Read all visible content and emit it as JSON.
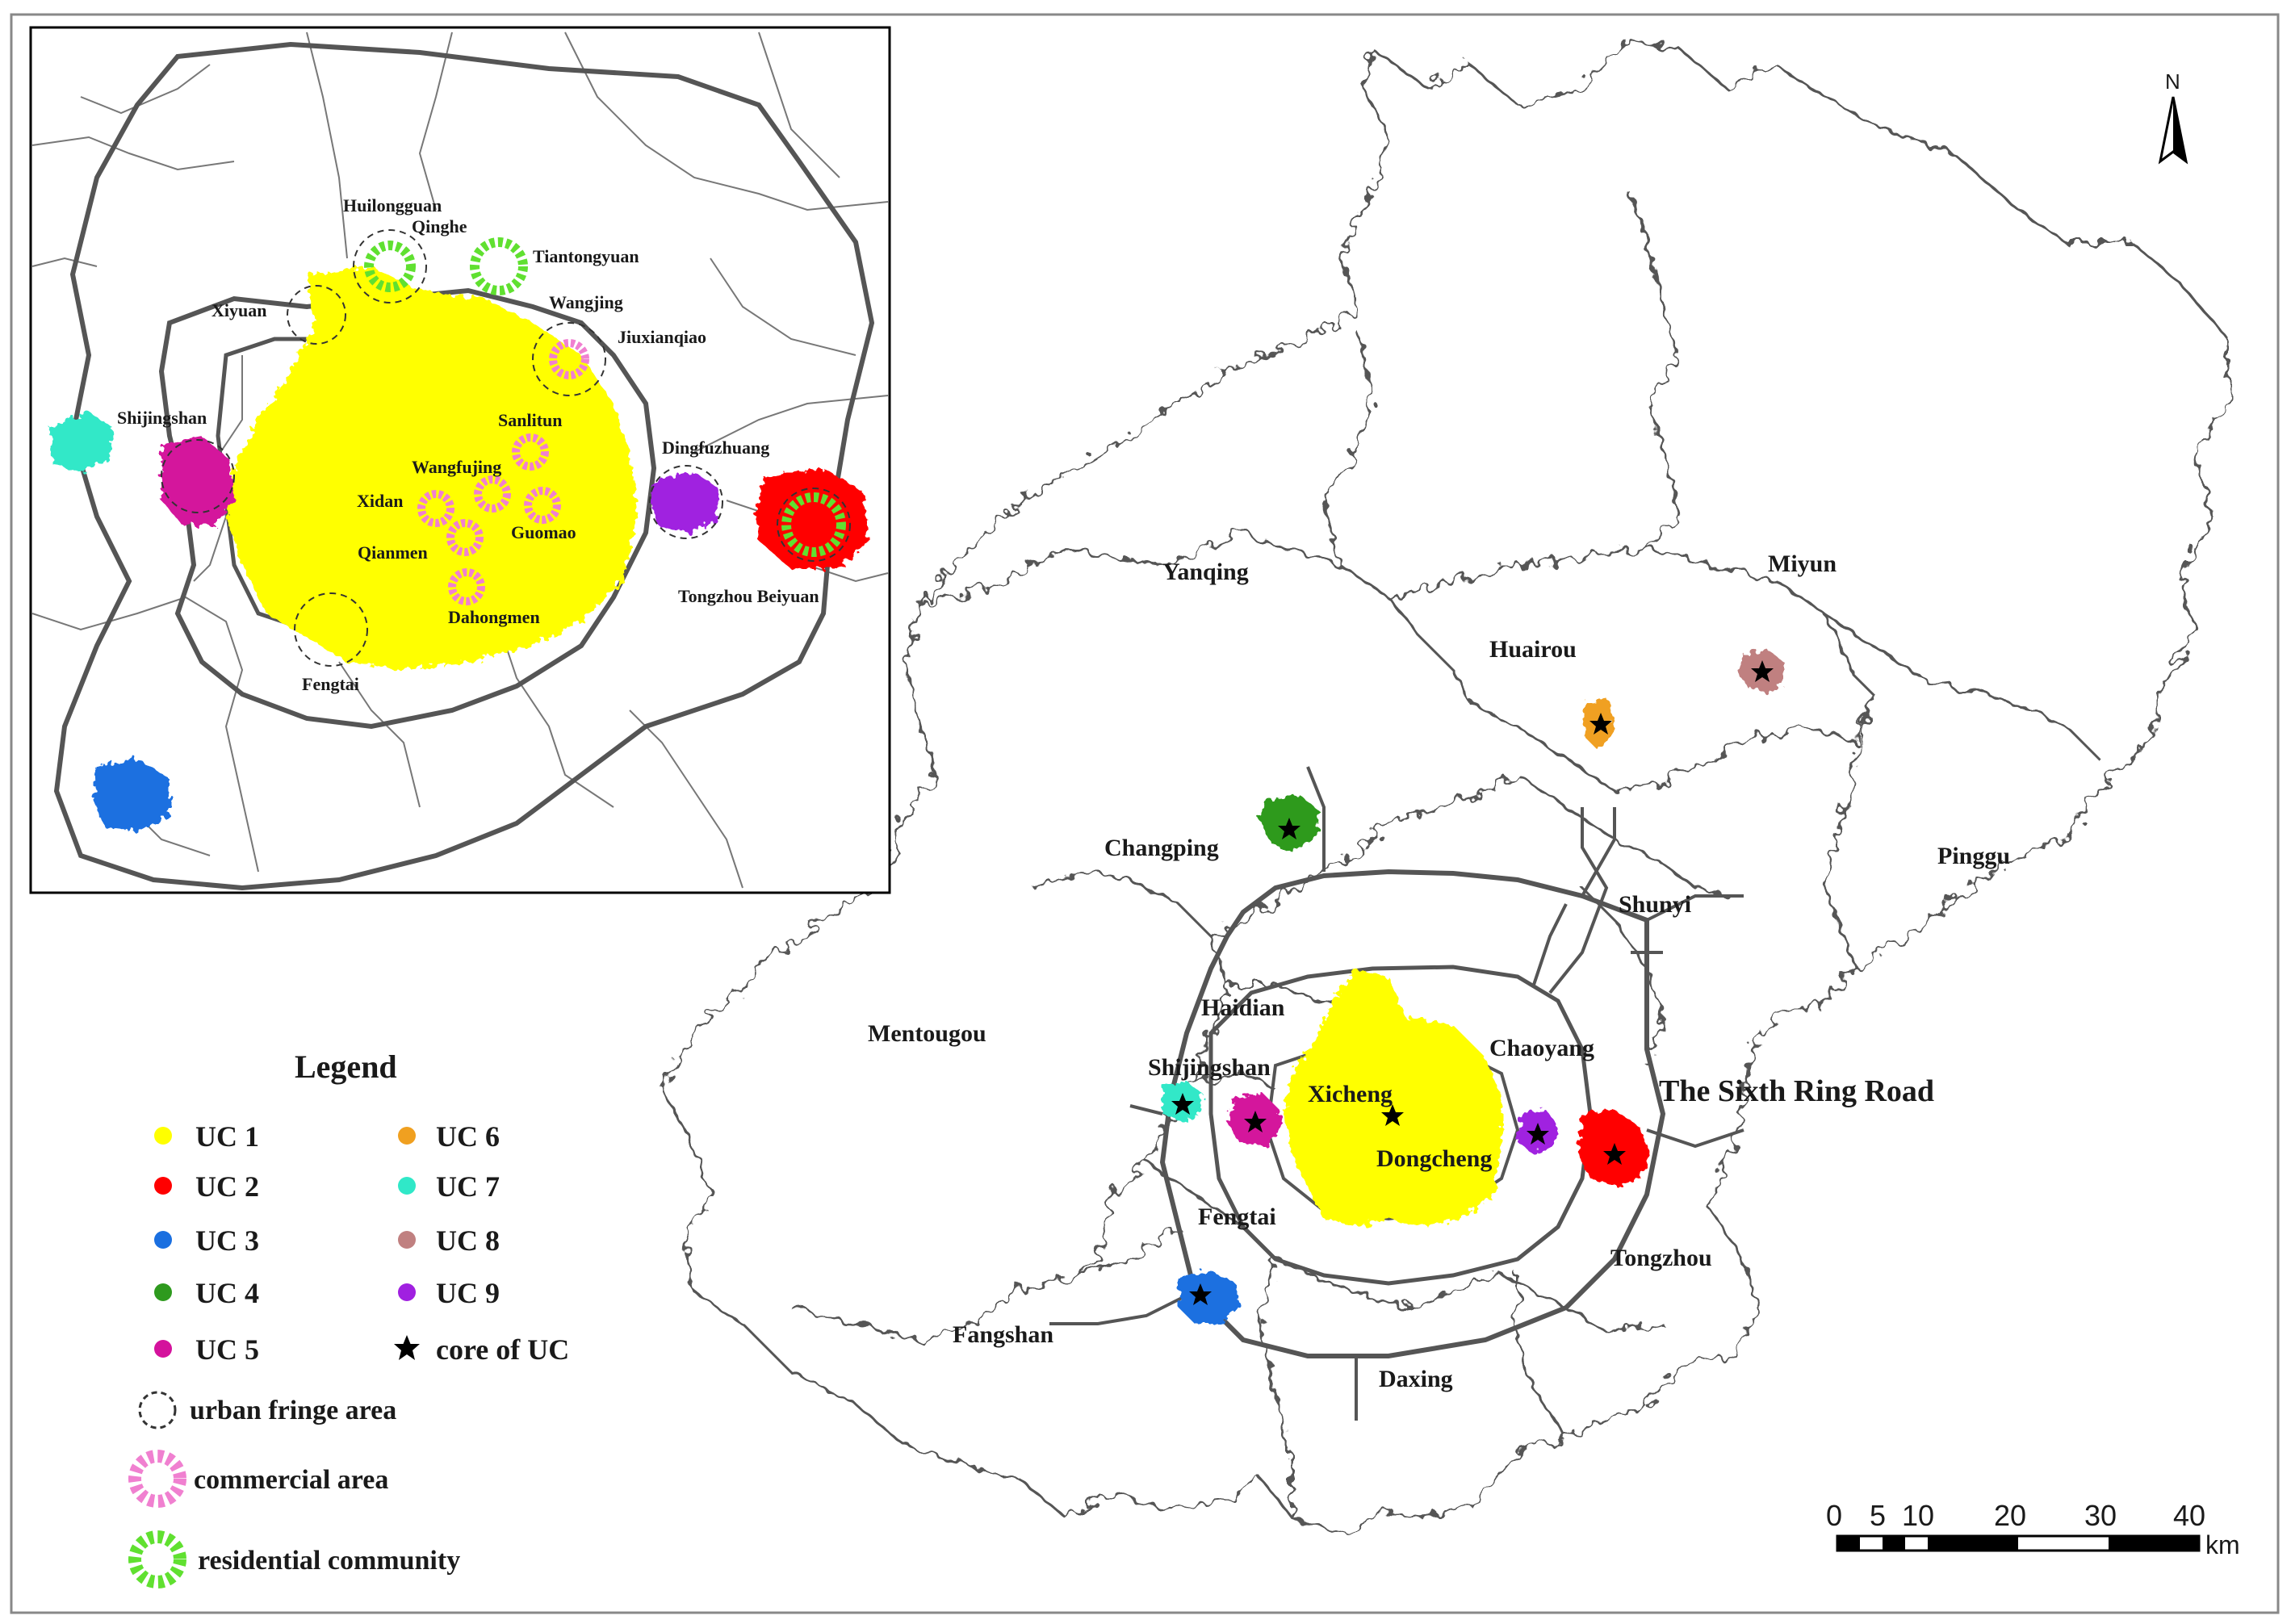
{
  "main_districts": [
    {
      "id": "yanqing",
      "label": "Yanqing"
    },
    {
      "id": "huairou",
      "label": "Huairou"
    },
    {
      "id": "miyun",
      "label": "Miyun"
    },
    {
      "id": "pinggu",
      "label": "Pinggu"
    },
    {
      "id": "changping",
      "label": "Changping"
    },
    {
      "id": "shunyi",
      "label": "Shunyi"
    },
    {
      "id": "mentougou",
      "label": "Mentougou"
    },
    {
      "id": "haidian",
      "label": "Haidian"
    },
    {
      "id": "shijingshan",
      "label": "Shijingshan"
    },
    {
      "id": "chaoyang",
      "label": "Chaoyang"
    },
    {
      "id": "xicheng",
      "label": "Xicheng"
    },
    {
      "id": "dongcheng",
      "label": "Dongcheng"
    },
    {
      "id": "fengtai",
      "label": "Fengtai"
    },
    {
      "id": "tongzhou",
      "label": "Tongzhou"
    },
    {
      "id": "fangshan",
      "label": "Fangshan"
    },
    {
      "id": "daxing",
      "label": "Daxing"
    }
  ],
  "ring_road_label": "The Sixth Ring Road",
  "inset_labels": [
    {
      "id": "huilongguan",
      "label": "Huilongguan"
    },
    {
      "id": "qinghe",
      "label": "Qinghe"
    },
    {
      "id": "tiantongyuan",
      "label": "Tiantongyuan"
    },
    {
      "id": "xiyuan",
      "label": "Xiyuan"
    },
    {
      "id": "wangjing",
      "label": "Wangjing"
    },
    {
      "id": "jiuxianqiao",
      "label": "Jiuxianqiao"
    },
    {
      "id": "shijingshan",
      "label": "Shijingshan"
    },
    {
      "id": "sanlitun",
      "label": "Sanlitun"
    },
    {
      "id": "dingfuzhuang",
      "label": "Dingfuzhuang"
    },
    {
      "id": "wangfujing",
      "label": "Wangfujing"
    },
    {
      "id": "xidan",
      "label": "Xidan"
    },
    {
      "id": "guomao",
      "label": "Guomao"
    },
    {
      "id": "qianmen",
      "label": "Qianmen"
    },
    {
      "id": "tongzhou-beiyuan",
      "label": "Tongzhou Beiyuan"
    },
    {
      "id": "dahongmen",
      "label": "Dahongmen"
    },
    {
      "id": "fengtai",
      "label": "Fengtai"
    }
  ],
  "north_arrow": {
    "label": "N"
  },
  "scale_bar": {
    "ticks": [
      "0",
      "5",
      "10",
      "20",
      "30",
      "40"
    ],
    "unit": "km"
  },
  "legend": {
    "title": "Legend",
    "items": [
      {
        "id": "uc1",
        "label": "UC 1",
        "color": "#ffff00",
        "symbol": "dot"
      },
      {
        "id": "uc2",
        "label": "UC 2",
        "color": "#ff0000",
        "symbol": "dot"
      },
      {
        "id": "uc3",
        "label": "UC 3",
        "color": "#1a6fe0",
        "symbol": "dot"
      },
      {
        "id": "uc4",
        "label": "UC 4",
        "color": "#2e9a1e",
        "symbol": "dot"
      },
      {
        "id": "uc5",
        "label": "UC 5",
        "color": "#d4129c",
        "symbol": "dot"
      },
      {
        "id": "uc6",
        "label": "UC 6",
        "color": "#f0a020",
        "symbol": "dot"
      },
      {
        "id": "uc7",
        "label": "UC 7",
        "color": "#30e8c8",
        "symbol": "dot"
      },
      {
        "id": "uc8",
        "label": "UC 8",
        "color": "#c08080",
        "symbol": "dot"
      },
      {
        "id": "uc9",
        "label": "UC 9",
        "color": "#a020e0",
        "symbol": "dot"
      },
      {
        "id": "core",
        "label": "core of UC",
        "color": "#000000",
        "symbol": "star"
      }
    ],
    "extra": [
      {
        "id": "fringe",
        "label": "urban fringe area"
      },
      {
        "id": "commercial",
        "label": "commercial area",
        "color": "#f080d0"
      },
      {
        "id": "residential",
        "label": "residential community",
        "color": "#60e030"
      }
    ]
  }
}
